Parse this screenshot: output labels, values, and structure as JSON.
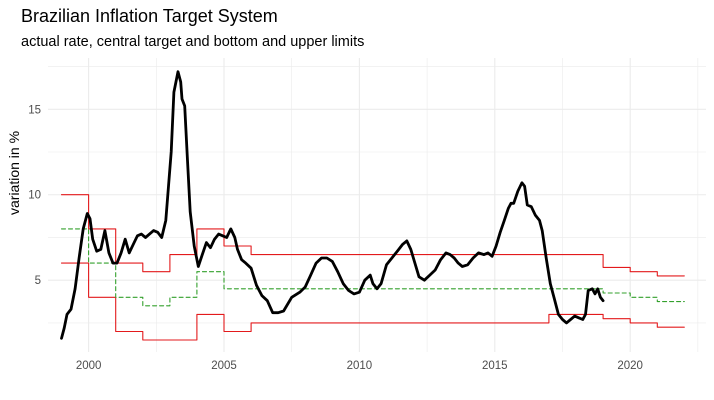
{
  "chart_data": {
    "type": "line",
    "title": "Brazilian Inflation Target System",
    "subtitle": "actual rate, central target and bottom and upper limits",
    "xlabel": "",
    "ylabel": "variation in %",
    "xlim": [
      1998.5,
      2022.8
    ],
    "ylim": [
      0.8,
      18.0
    ],
    "x_ticks": [
      2000,
      2005,
      2010,
      2015,
      2020
    ],
    "y_ticks": [
      5,
      10,
      15
    ],
    "grid": true,
    "colors": {
      "actual": "#000000",
      "limits": "#e31a1c",
      "center": "#33a02c",
      "grid": "#ebebeb"
    },
    "series": [
      {
        "key": "actual",
        "values": [
          [
            1999.0,
            1.6
          ],
          [
            1999.1,
            2.2
          ],
          [
            1999.2,
            3.0
          ],
          [
            1999.35,
            3.3
          ],
          [
            1999.5,
            4.5
          ],
          [
            1999.65,
            6.3
          ],
          [
            1999.8,
            8.0
          ],
          [
            1999.95,
            8.9
          ],
          [
            2000.05,
            8.6
          ],
          [
            2000.15,
            7.4
          ],
          [
            2000.3,
            6.7
          ],
          [
            2000.45,
            6.8
          ],
          [
            2000.6,
            7.9
          ],
          [
            2000.75,
            6.6
          ],
          [
            2000.9,
            6.0
          ],
          [
            2001.05,
            6.0
          ],
          [
            2001.2,
            6.6
          ],
          [
            2001.35,
            7.4
          ],
          [
            2001.5,
            6.6
          ],
          [
            2001.65,
            7.1
          ],
          [
            2001.8,
            7.6
          ],
          [
            2001.95,
            7.7
          ],
          [
            2002.1,
            7.5
          ],
          [
            2002.25,
            7.7
          ],
          [
            2002.4,
            7.9
          ],
          [
            2002.55,
            7.8
          ],
          [
            2002.7,
            7.5
          ],
          [
            2002.85,
            8.5
          ],
          [
            2002.95,
            10.5
          ],
          [
            2003.05,
            12.5
          ],
          [
            2003.15,
            16.0
          ],
          [
            2003.3,
            17.2
          ],
          [
            2003.4,
            16.6
          ],
          [
            2003.45,
            15.6
          ],
          [
            2003.55,
            15.2
          ],
          [
            2003.65,
            12.0
          ],
          [
            2003.75,
            9.0
          ],
          [
            2003.9,
            7.0
          ],
          [
            2004.05,
            5.8
          ],
          [
            2004.2,
            6.5
          ],
          [
            2004.35,
            7.2
          ],
          [
            2004.5,
            6.9
          ],
          [
            2004.65,
            7.4
          ],
          [
            2004.8,
            7.7
          ],
          [
            2004.95,
            7.6
          ],
          [
            2005.1,
            7.5
          ],
          [
            2005.25,
            8.0
          ],
          [
            2005.4,
            7.5
          ],
          [
            2005.5,
            6.8
          ],
          [
            2005.65,
            6.2
          ],
          [
            2005.8,
            6.0
          ],
          [
            2006.0,
            5.7
          ],
          [
            2006.2,
            4.7
          ],
          [
            2006.4,
            4.1
          ],
          [
            2006.6,
            3.8
          ],
          [
            2006.8,
            3.1
          ],
          [
            2007.0,
            3.1
          ],
          [
            2007.2,
            3.2
          ],
          [
            2007.5,
            4.0
          ],
          [
            2007.8,
            4.3
          ],
          [
            2008.0,
            4.6
          ],
          [
            2008.2,
            5.3
          ],
          [
            2008.4,
            6.0
          ],
          [
            2008.6,
            6.3
          ],
          [
            2008.8,
            6.3
          ],
          [
            2009.0,
            6.1
          ],
          [
            2009.2,
            5.5
          ],
          [
            2009.4,
            4.8
          ],
          [
            2009.6,
            4.4
          ],
          [
            2009.8,
            4.2
          ],
          [
            2010.0,
            4.3
          ],
          [
            2010.2,
            5.0
          ],
          [
            2010.4,
            5.3
          ],
          [
            2010.5,
            4.8
          ],
          [
            2010.65,
            4.5
          ],
          [
            2010.8,
            4.8
          ],
          [
            2011.0,
            5.9
          ],
          [
            2011.2,
            6.3
          ],
          [
            2011.4,
            6.7
          ],
          [
            2011.6,
            7.1
          ],
          [
            2011.75,
            7.3
          ],
          [
            2011.9,
            6.8
          ],
          [
            2012.05,
            6.0
          ],
          [
            2012.2,
            5.2
          ],
          [
            2012.4,
            5.0
          ],
          [
            2012.6,
            5.3
          ],
          [
            2012.8,
            5.6
          ],
          [
            2013.0,
            6.2
          ],
          [
            2013.2,
            6.6
          ],
          [
            2013.35,
            6.5
          ],
          [
            2013.5,
            6.3
          ],
          [
            2013.65,
            6.0
          ],
          [
            2013.8,
            5.8
          ],
          [
            2014.0,
            5.9
          ],
          [
            2014.2,
            6.3
          ],
          [
            2014.4,
            6.6
          ],
          [
            2014.6,
            6.5
          ],
          [
            2014.75,
            6.6
          ],
          [
            2014.9,
            6.4
          ],
          [
            2015.05,
            7.0
          ],
          [
            2015.2,
            7.8
          ],
          [
            2015.35,
            8.5
          ],
          [
            2015.5,
            9.2
          ],
          [
            2015.6,
            9.5
          ],
          [
            2015.7,
            9.5
          ],
          [
            2015.85,
            10.2
          ],
          [
            2016.0,
            10.7
          ],
          [
            2016.1,
            10.5
          ],
          [
            2016.2,
            9.4
          ],
          [
            2016.35,
            9.3
          ],
          [
            2016.5,
            8.8
          ],
          [
            2016.65,
            8.5
          ],
          [
            2016.75,
            7.9
          ],
          [
            2016.9,
            6.3
          ],
          [
            2017.05,
            4.8
          ],
          [
            2017.2,
            3.9
          ],
          [
            2017.35,
            3.0
          ],
          [
            2017.5,
            2.7
          ],
          [
            2017.65,
            2.5
          ],
          [
            2017.8,
            2.7
          ],
          [
            2017.95,
            2.9
          ],
          [
            2018.1,
            2.8
          ],
          [
            2018.25,
            2.7
          ],
          [
            2018.35,
            3.0
          ],
          [
            2018.45,
            4.4
          ],
          [
            2018.6,
            4.5
          ],
          [
            2018.7,
            4.2
          ],
          [
            2018.8,
            4.5
          ],
          [
            2018.9,
            4.0
          ],
          [
            2019.0,
            3.8
          ]
        ]
      },
      {
        "key": "center",
        "values": [
          [
            1999.0,
            8.0
          ],
          [
            2000.0,
            8.0
          ],
          [
            2000.0,
            6.0
          ],
          [
            2001.0,
            6.0
          ],
          [
            2001.0,
            4.0
          ],
          [
            2002.0,
            4.0
          ],
          [
            2002.0,
            3.5
          ],
          [
            2003.0,
            3.5
          ],
          [
            2003.0,
            4.0
          ],
          [
            2004.0,
            4.0
          ],
          [
            2004.0,
            5.5
          ],
          [
            2005.0,
            5.5
          ],
          [
            2005.0,
            4.5
          ],
          [
            2017.0,
            4.5
          ],
          [
            2019.0,
            4.5
          ],
          [
            2019.0,
            4.25
          ],
          [
            2020.0,
            4.25
          ],
          [
            2020.0,
            4.0
          ],
          [
            2021.0,
            4.0
          ],
          [
            2021.0,
            3.75
          ],
          [
            2022.0,
            3.75
          ]
        ]
      },
      {
        "key": "upper",
        "values": [
          [
            1999.0,
            10.0
          ],
          [
            2000.0,
            10.0
          ],
          [
            2000.0,
            8.0
          ],
          [
            2001.0,
            8.0
          ],
          [
            2001.0,
            6.0
          ],
          [
            2002.0,
            6.0
          ],
          [
            2002.0,
            5.5
          ],
          [
            2003.0,
            5.5
          ],
          [
            2003.0,
            6.5
          ],
          [
            2004.0,
            6.5
          ],
          [
            2004.0,
            8.0
          ],
          [
            2005.0,
            8.0
          ],
          [
            2005.0,
            7.0
          ],
          [
            2006.0,
            7.0
          ],
          [
            2006.0,
            6.5
          ],
          [
            2017.0,
            6.5
          ],
          [
            2019.0,
            6.5
          ],
          [
            2019.0,
            5.75
          ],
          [
            2020.0,
            5.75
          ],
          [
            2020.0,
            5.5
          ],
          [
            2021.0,
            5.5
          ],
          [
            2021.0,
            5.25
          ],
          [
            2022.0,
            5.25
          ]
        ]
      },
      {
        "key": "lower",
        "values": [
          [
            1999.0,
            6.0
          ],
          [
            2000.0,
            6.0
          ],
          [
            2000.0,
            4.0
          ],
          [
            2001.0,
            4.0
          ],
          [
            2001.0,
            2.0
          ],
          [
            2002.0,
            2.0
          ],
          [
            2002.0,
            1.5
          ],
          [
            2003.0,
            1.5
          ],
          [
            2003.0,
            1.5
          ],
          [
            2004.0,
            1.5
          ],
          [
            2004.0,
            3.0
          ],
          [
            2005.0,
            3.0
          ],
          [
            2005.0,
            2.0
          ],
          [
            2006.0,
            2.0
          ],
          [
            2006.0,
            2.5
          ],
          [
            2017.0,
            2.5
          ],
          [
            2017.0,
            3.0
          ],
          [
            2019.0,
            3.0
          ],
          [
            2019.0,
            2.75
          ],
          [
            2020.0,
            2.75
          ],
          [
            2020.0,
            2.5
          ],
          [
            2021.0,
            2.5
          ],
          [
            2021.0,
            2.25
          ],
          [
            2022.0,
            2.25
          ]
        ]
      }
    ]
  }
}
